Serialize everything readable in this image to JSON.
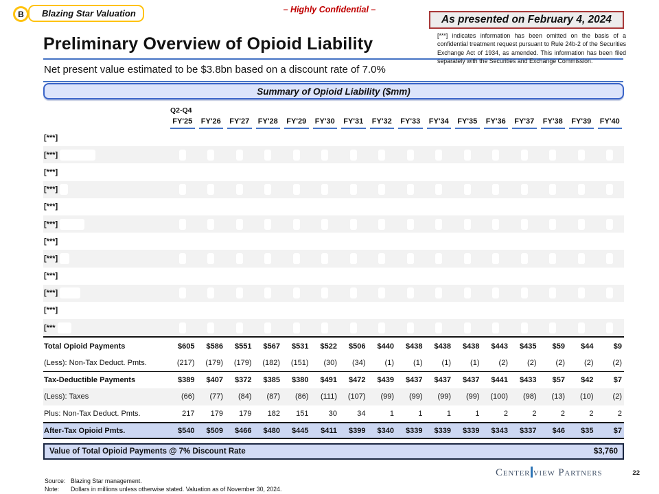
{
  "colors": {
    "accent_blue": "#4472c4",
    "stripe": "#f2f2f2",
    "highlight": "#ccd7f2",
    "banner_fill": "#dce4fb",
    "banner_border": "#3a64c8",
    "red": "#c00000",
    "presented_border": "#a83939",
    "logo_yellow": "#ffc20e",
    "brand_navy": "#44546a",
    "brand_bar": "#2e75b6",
    "box_navy": "#1b2741"
  },
  "header": {
    "logo_letter": "B",
    "logo_label": "Blazing Star Valuation",
    "confidential": "– Highly Confidential –",
    "presented": "As presented on February 4, 2024",
    "disclosure": "[***] indicates information has been omitted on the basis of a confidential treatment request pursuant to Rule 24b-2 of the Securities Exchange Act of 1934, as amended. This information has been filed separately with the Securities and Exchange Commission."
  },
  "title": "Preliminary Overview of Opioid Liability",
  "subtitle": "Net present value estimated to be $3.8bn based on a discount rate of 7.0%",
  "table": {
    "banner": "Summary of Opioid Liability ($mm)",
    "period_note": "Q2-Q4",
    "columns": [
      "FY'25",
      "FY'26",
      "FY'27",
      "FY'28",
      "FY'29",
      "FY'30",
      "FY'31",
      "FY'32",
      "FY'33",
      "FY'34",
      "FY'35",
      "FY'36",
      "FY'37",
      "FY'38",
      "FY'39",
      "FY'40"
    ],
    "redacted_rows": [
      "[***]",
      "[***]",
      "[***]",
      "[***]",
      "[***]",
      "[***]",
      "[***]",
      "[***]",
      "[***]",
      "[***]",
      "[***]",
      "[***"
    ],
    "summary_rows": [
      {
        "label": "Total Opioid Payments",
        "style": "subtotal",
        "values": [
          "$605",
          "$586",
          "$551",
          "$567",
          "$531",
          "$522",
          "$506",
          "$440",
          "$438",
          "$438",
          "$438",
          "$443",
          "$435",
          "$59",
          "$44",
          "$9"
        ]
      },
      {
        "label": "(Less): Non-Tax Deduct. Pmts.",
        "style": "line",
        "values": [
          "(217)",
          "(179)",
          "(179)",
          "(182)",
          "(151)",
          "(30)",
          "(34)",
          "(1)",
          "(1)",
          "(1)",
          "(1)",
          "(2)",
          "(2)",
          "(2)",
          "(2)",
          "(2)"
        ]
      },
      {
        "label": "Tax-Deductible Payments",
        "style": "subtotal-rule",
        "values": [
          "$389",
          "$407",
          "$372",
          "$385",
          "$380",
          "$491",
          "$472",
          "$439",
          "$437",
          "$437",
          "$437",
          "$441",
          "$433",
          "$57",
          "$42",
          "$7"
        ]
      },
      {
        "label": "(Less): Taxes",
        "style": "line",
        "shaded": true,
        "values": [
          "(66)",
          "(77)",
          "(84)",
          "(87)",
          "(86)",
          "(111)",
          "(107)",
          "(99)",
          "(99)",
          "(99)",
          "(99)",
          "(100)",
          "(98)",
          "(13)",
          "(10)",
          "(2)"
        ]
      },
      {
        "label": "Plus: Non-Tax Deduct. Pmts.",
        "style": "line",
        "values": [
          "217",
          "179",
          "179",
          "182",
          "151",
          "30",
          "34",
          "1",
          "1",
          "1",
          "1",
          "2",
          "2",
          "2",
          "2",
          "2"
        ]
      },
      {
        "label": "After-Tax Opioid Pmts.",
        "style": "total-highlight",
        "values": [
          "$540",
          "$509",
          "$466",
          "$480",
          "$445",
          "$411",
          "$399",
          "$340",
          "$339",
          "$339",
          "$339",
          "$343",
          "$337",
          "$46",
          "$35",
          "$7"
        ]
      }
    ],
    "value_row": {
      "label": "Value of Total Opioid Payments @ 7% Discount Rate",
      "value": "$3,760"
    }
  },
  "footer": {
    "source_label": "Source:",
    "source": "Blazing Star management.",
    "note_label": "Note:",
    "note": "Dollars in millions unless otherwise stated. Valuation as of November 30, 2024.",
    "brand_left": "Center",
    "brand_right": "view Partners",
    "page_number": "22"
  }
}
